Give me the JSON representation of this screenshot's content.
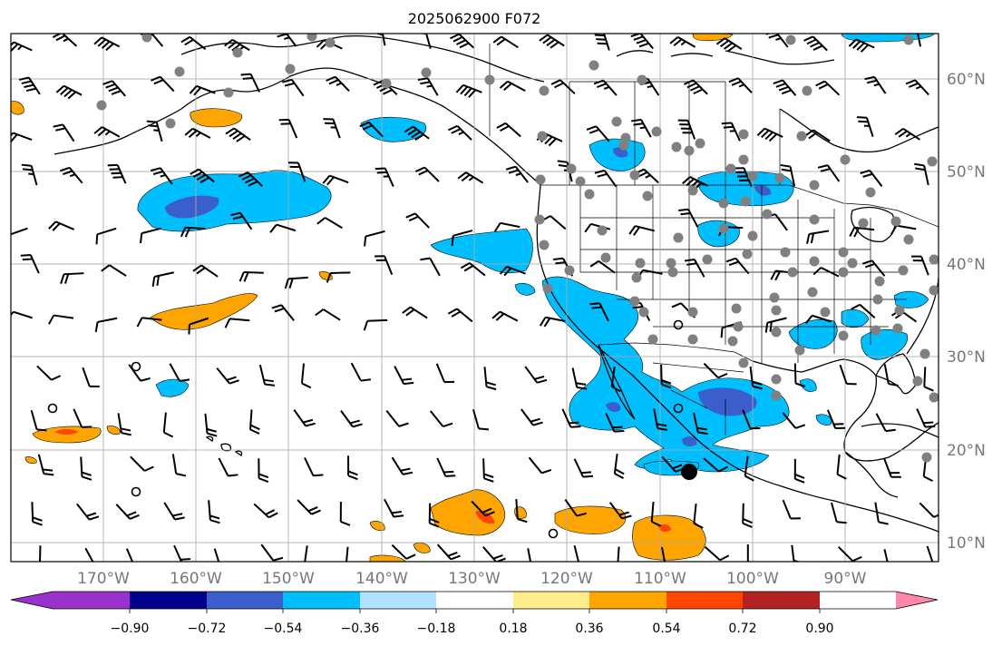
{
  "title": "2025062900 F072",
  "longitude_labels": [
    "170°W",
    "160°W",
    "150°W",
    "140°W",
    "130°W",
    "120°W",
    "110°W",
    "100°W",
    "90°W"
  ],
  "latitude_labels": [
    "60°N",
    "50°N",
    "40°N",
    "30°N",
    "20°N",
    "10°N"
  ],
  "colorbar": {
    "tick_labels": [
      "−0.90",
      "−0.72",
      "−0.54",
      "−0.36",
      "−0.18",
      "0.18",
      "0.36",
      "0.54",
      "0.72",
      "0.90"
    ],
    "colors": [
      "#9932cc",
      "#00008b",
      "#3a5fcd",
      "#00bfff",
      "#b0e2ff",
      "#ffffff",
      "#ffec8b",
      "#ffa500",
      "#ff4500",
      "#b22222",
      "#ff88aa"
    ],
    "extend": "both"
  },
  "map_style": {
    "contour_colors": {
      "blue_light": "#00bfff",
      "blue_mid": "#3a5fcd",
      "orange": "#ffa500",
      "red": "#ff4500"
    },
    "station_dot_color": "#808080",
    "gridlines": true
  }
}
